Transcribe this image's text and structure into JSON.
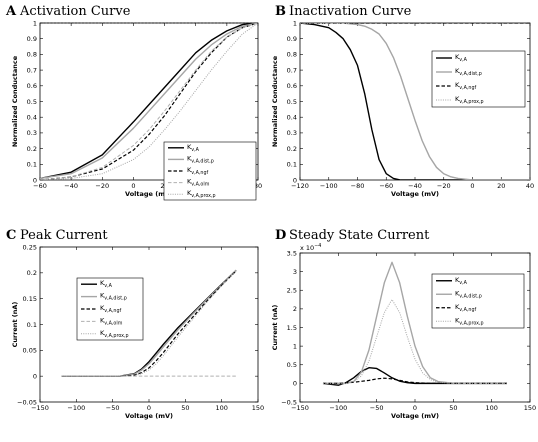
{
  "styles": {
    "K_v,A": {
      "color": "#000000",
      "width": 1.4,
      "dash": ""
    },
    "K_v,A,dist,p": {
      "color": "#a6a6a6",
      "width": 1.4,
      "dash": ""
    },
    "K_v,A,ngf": {
      "color": "#000000",
      "width": 1.2,
      "dash": "3.5,2"
    },
    "K_v,A,olm": {
      "color": "#b0b0b0",
      "width": 1.0,
      "dash": "3.5,2"
    },
    "K_v,A,prox,p": {
      "color": "#a6a6a6",
      "width": 1.0,
      "dash": "1,1.3"
    }
  },
  "chart_data": [
    {
      "type": "line",
      "letter": "A",
      "title": "Activation Curve",
      "xlabel": "Voltage (mV)",
      "ylabel": "Normalized Conductance",
      "xlim": [
        -60,
        80
      ],
      "ylim": [
        0,
        1
      ],
      "xticks": [
        -60,
        -40,
        -20,
        0,
        20,
        40,
        60,
        80
      ],
      "yticks": [
        0,
        0.1,
        0.2,
        0.3,
        0.4,
        0.5,
        0.6,
        0.7,
        0.8,
        0.9,
        1
      ],
      "multiplier": "",
      "grid": false,
      "legend_position": "bottom-right",
      "reference_line": {
        "y": 1,
        "dash": "2,1.5",
        "color": "#000000"
      },
      "series": [
        {
          "name": "K",
          "sub": "v,A",
          "style": "K_v,A",
          "x": [
            -60,
            -40,
            -20,
            0,
            10,
            20,
            30,
            40,
            50,
            60,
            70,
            80
          ],
          "y": [
            0.01,
            0.05,
            0.16,
            0.37,
            0.48,
            0.59,
            0.7,
            0.81,
            0.89,
            0.95,
            0.99,
            1.0
          ]
        },
        {
          "name": "K",
          "sub": "v,A,dist,p",
          "style": "K_v,A,dist,p",
          "x": [
            -60,
            -40,
            -20,
            0,
            10,
            20,
            30,
            40,
            50,
            60,
            70,
            80
          ],
          "y": [
            0.01,
            0.04,
            0.14,
            0.33,
            0.44,
            0.55,
            0.66,
            0.77,
            0.86,
            0.93,
            0.98,
            1.0
          ]
        },
        {
          "name": "K",
          "sub": "v,A,ngf",
          "style": "K_v,A,ngf",
          "x": [
            -60,
            -40,
            -20,
            0,
            10,
            20,
            30,
            40,
            50,
            60,
            70,
            80
          ],
          "y": [
            0.0,
            0.02,
            0.07,
            0.19,
            0.29,
            0.41,
            0.55,
            0.69,
            0.81,
            0.91,
            0.97,
            1.0
          ]
        },
        {
          "name": "K",
          "sub": "v,A,olm",
          "style": "K_v,A,olm",
          "x": [
            -60,
            -40,
            -20,
            0,
            10,
            20,
            30,
            40,
            50,
            60,
            70,
            80
          ],
          "y": [
            0.0,
            0.02,
            0.08,
            0.22,
            0.32,
            0.44,
            0.57,
            0.7,
            0.82,
            0.91,
            0.97,
            1.0
          ]
        },
        {
          "name": "K",
          "sub": "v,A,prox,p",
          "style": "K_v,A,prox,p",
          "x": [
            -60,
            -40,
            -20,
            0,
            10,
            20,
            30,
            40,
            50,
            60,
            70,
            80
          ],
          "y": [
            0.0,
            0.01,
            0.04,
            0.13,
            0.21,
            0.32,
            0.44,
            0.57,
            0.7,
            0.82,
            0.93,
            1.0
          ]
        }
      ]
    },
    {
      "type": "line",
      "letter": "B",
      "title": "Inactivation Curve",
      "xlabel": "Voltage (mV)",
      "ylabel": "Normalized Conductance",
      "xlim": [
        -120,
        40
      ],
      "ylim": [
        0,
        1
      ],
      "xticks": [
        -120,
        -100,
        -80,
        -60,
        -40,
        -20,
        0,
        20,
        40
      ],
      "yticks": [
        0,
        0.1,
        0.2,
        0.3,
        0.4,
        0.5,
        0.6,
        0.7,
        0.8,
        0.9,
        1
      ],
      "multiplier": "",
      "grid": false,
      "legend_position": "top-right",
      "series": [
        {
          "name": "K",
          "sub": "v,A",
          "style": "K_v,A",
          "x": [
            -120,
            -110,
            -100,
            -95,
            -90,
            -85,
            -80,
            -75,
            -70,
            -65,
            -60,
            -55,
            -50,
            -40,
            40
          ],
          "y": [
            1.0,
            0.99,
            0.97,
            0.94,
            0.9,
            0.83,
            0.73,
            0.55,
            0.32,
            0.13,
            0.04,
            0.01,
            0.0,
            0.0,
            0.0
          ]
        },
        {
          "name": "K",
          "sub": "v,A,dist,p",
          "style": "K_v,A,dist,p",
          "x": [
            -120,
            -90,
            -80,
            -75,
            -70,
            -65,
            -60,
            -55,
            -50,
            -45,
            -40,
            -35,
            -30,
            -25,
            -20,
            -15,
            -10,
            0,
            40
          ],
          "y": [
            1.0,
            1.0,
            0.99,
            0.98,
            0.96,
            0.93,
            0.87,
            0.78,
            0.66,
            0.52,
            0.38,
            0.25,
            0.15,
            0.08,
            0.04,
            0.02,
            0.01,
            0.0,
            0.0
          ]
        },
        {
          "name": "K",
          "sub": "v,A,ngf",
          "style": "K_v,A,ngf",
          "x": [
            -120,
            40
          ],
          "y": [
            1.0,
            1.0
          ]
        },
        {
          "name": "K",
          "sub": "v,A,prox,p",
          "style": "K_v,A,prox,p",
          "x": [
            -120,
            -90,
            -80,
            -75,
            -70,
            -65,
            -60,
            -55,
            -50,
            -45,
            -40,
            -35,
            -30,
            -25,
            -20,
            -15,
            -10,
            0,
            40
          ],
          "y": [
            1.0,
            1.0,
            0.99,
            0.98,
            0.96,
            0.93,
            0.87,
            0.78,
            0.66,
            0.52,
            0.38,
            0.25,
            0.15,
            0.08,
            0.04,
            0.02,
            0.01,
            0.0,
            0.0
          ]
        }
      ]
    },
    {
      "type": "line",
      "letter": "C",
      "title": "Peak Current",
      "xlabel": "Voltage (mV)",
      "ylabel": "Current (nA)",
      "xlim": [
        -150,
        150
      ],
      "ylim": [
        -0.05,
        0.25
      ],
      "xticks": [
        -150,
        -100,
        -50,
        0,
        50,
        100,
        150
      ],
      "yticks": [
        -0.05,
        0,
        0.05,
        0.1,
        0.15,
        0.2,
        0.25
      ],
      "multiplier": "",
      "grid": false,
      "legend_position": "top-left",
      "series": [
        {
          "name": "K",
          "sub": "v,A",
          "style": "K_v,A",
          "x": [
            -120,
            -40,
            -20,
            -10,
            0,
            10,
            20,
            40,
            60,
            80,
            100,
            120
          ],
          "y": [
            0.0,
            0.0,
            0.005,
            0.014,
            0.028,
            0.045,
            0.062,
            0.094,
            0.122,
            0.15,
            0.178,
            0.205
          ]
        },
        {
          "name": "K",
          "sub": "v,A,dist,p",
          "style": "K_v,A,dist,p",
          "x": [
            -120,
            -40,
            -20,
            -10,
            0,
            10,
            20,
            40,
            60,
            80,
            100,
            120
          ],
          "y": [
            0.0,
            0.0,
            0.004,
            0.012,
            0.024,
            0.04,
            0.057,
            0.09,
            0.12,
            0.149,
            0.177,
            0.205
          ]
        },
        {
          "name": "K",
          "sub": "v,A,ngf",
          "style": "K_v,A,ngf",
          "x": [
            -120,
            -40,
            -20,
            -10,
            0,
            10,
            20,
            40,
            60,
            80,
            100,
            120
          ],
          "y": [
            0.0,
            0.0,
            0.002,
            0.007,
            0.016,
            0.03,
            0.046,
            0.082,
            0.114,
            0.146,
            0.176,
            0.204
          ]
        },
        {
          "name": "K",
          "sub": "v,A,olm",
          "style": "K_v,A,olm",
          "x": [
            -120,
            120
          ],
          "y": [
            0.0,
            0.0
          ]
        },
        {
          "name": "K",
          "sub": "v,A,prox,p",
          "style": "K_v,A,prox,p",
          "x": [
            -120,
            -40,
            -20,
            -10,
            0,
            10,
            20,
            40,
            60,
            80,
            100,
            120
          ],
          "y": [
            0.0,
            0.0,
            0.001,
            0.005,
            0.012,
            0.024,
            0.04,
            0.076,
            0.11,
            0.144,
            0.175,
            0.205
          ]
        }
      ]
    },
    {
      "type": "line",
      "letter": "D",
      "title": "Steady State Current",
      "xlabel": "Voltage (mV)",
      "ylabel": "Current (nA)",
      "xlim": [
        -150,
        150
      ],
      "ylim": [
        -0.5,
        3.5
      ],
      "xticks": [
        -150,
        -100,
        -50,
        0,
        50,
        100,
        150
      ],
      "yticks": [
        -0.5,
        0,
        0.5,
        1,
        1.5,
        2,
        2.5,
        3,
        3.5
      ],
      "multiplier": "x 10",
      "multiplier_exp": "−4",
      "grid": false,
      "legend_position": "top-right",
      "series": [
        {
          "name": "K",
          "sub": "v,A",
          "style": "K_v,A",
          "x": [
            -120,
            -100,
            -90,
            -80,
            -70,
            -60,
            -50,
            -40,
            -30,
            -20,
            -10,
            0,
            20,
            50,
            120
          ],
          "y": [
            0.0,
            -0.05,
            0.02,
            0.15,
            0.32,
            0.42,
            0.4,
            0.28,
            0.15,
            0.06,
            0.02,
            0.0,
            0.0,
            0.0,
            0.0
          ]
        },
        {
          "name": "K",
          "sub": "v,A,dist,p",
          "style": "K_v,A,dist,p",
          "x": [
            -120,
            -90,
            -80,
            -70,
            -60,
            -50,
            -40,
            -30,
            -20,
            -10,
            0,
            10,
            20,
            30,
            50,
            120
          ],
          "y": [
            0.0,
            0.0,
            0.05,
            0.3,
            0.9,
            1.8,
            2.7,
            3.25,
            2.7,
            1.8,
            1.0,
            0.45,
            0.15,
            0.05,
            0.0,
            0.0
          ]
        },
        {
          "name": "K",
          "sub": "v,A,ngf",
          "style": "K_v,A,ngf",
          "x": [
            -120,
            -100,
            -80,
            -60,
            -50,
            -40,
            -30,
            -20,
            -10,
            0,
            20,
            50,
            120
          ],
          "y": [
            0.0,
            0.0,
            0.03,
            0.08,
            0.12,
            0.14,
            0.12,
            0.08,
            0.04,
            0.02,
            0.0,
            0.0,
            0.0
          ]
        },
        {
          "name": "K",
          "sub": "v,A,prox,p",
          "style": "K_v,A,prox,p",
          "x": [
            -120,
            -90,
            -80,
            -70,
            -60,
            -50,
            -40,
            -30,
            -20,
            -10,
            0,
            10,
            20,
            30,
            50,
            120
          ],
          "y": [
            0.0,
            0.0,
            0.04,
            0.2,
            0.6,
            1.25,
            1.9,
            2.25,
            1.9,
            1.25,
            0.65,
            0.28,
            0.1,
            0.03,
            0.0,
            0.0
          ]
        }
      ]
    }
  ]
}
